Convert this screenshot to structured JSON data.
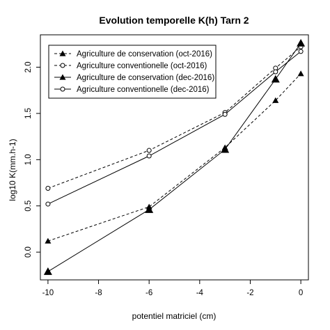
{
  "chart_data": {
    "type": "line",
    "title": "Evolution temporelle K(h) Tarn 2",
    "xlabel": "potentiel matriciel (cm)",
    "ylabel": "log10 K(mm.h-1)",
    "x": [
      -10,
      -6,
      -3,
      -1,
      0
    ],
    "xticks": [
      -10,
      -8,
      -6,
      -4,
      -2,
      0
    ],
    "xtick_labels": [
      "-10",
      "-8",
      "-6",
      "-4",
      "-2",
      "0"
    ],
    "yticks": [
      0.0,
      0.5,
      1.0,
      1.5,
      2.0
    ],
    "ytick_labels": [
      "0.0",
      "0.5",
      "1.0",
      "1.5",
      "2.0"
    ],
    "xlim": [
      -10.3,
      0.3
    ],
    "ylim": [
      -0.3,
      2.35
    ],
    "grid": false,
    "legend_position": "top-left",
    "series": [
      {
        "name": "Agriculture de conservation (oct-2016)",
        "marker": "triangle",
        "line": "dashed",
        "values": [
          0.12,
          0.49,
          1.13,
          1.64,
          1.93
        ]
      },
      {
        "name": "Agriculture conventionelle (oct-2016)",
        "marker": "circle",
        "line": "dashed",
        "values": [
          0.69,
          1.1,
          1.51,
          1.99,
          2.22
        ]
      },
      {
        "name": "Agriculture de conservation (dec-2016)",
        "marker": "triangle",
        "line": "solid",
        "values": [
          -0.21,
          0.46,
          1.11,
          1.87,
          2.26
        ]
      },
      {
        "name": "Agriculture conventionelle (dec-2016)",
        "marker": "circle",
        "line": "solid",
        "values": [
          0.52,
          1.04,
          1.49,
          1.95,
          2.17
        ]
      }
    ],
    "colors": {
      "line": "#000000",
      "background": "#ffffff"
    }
  }
}
